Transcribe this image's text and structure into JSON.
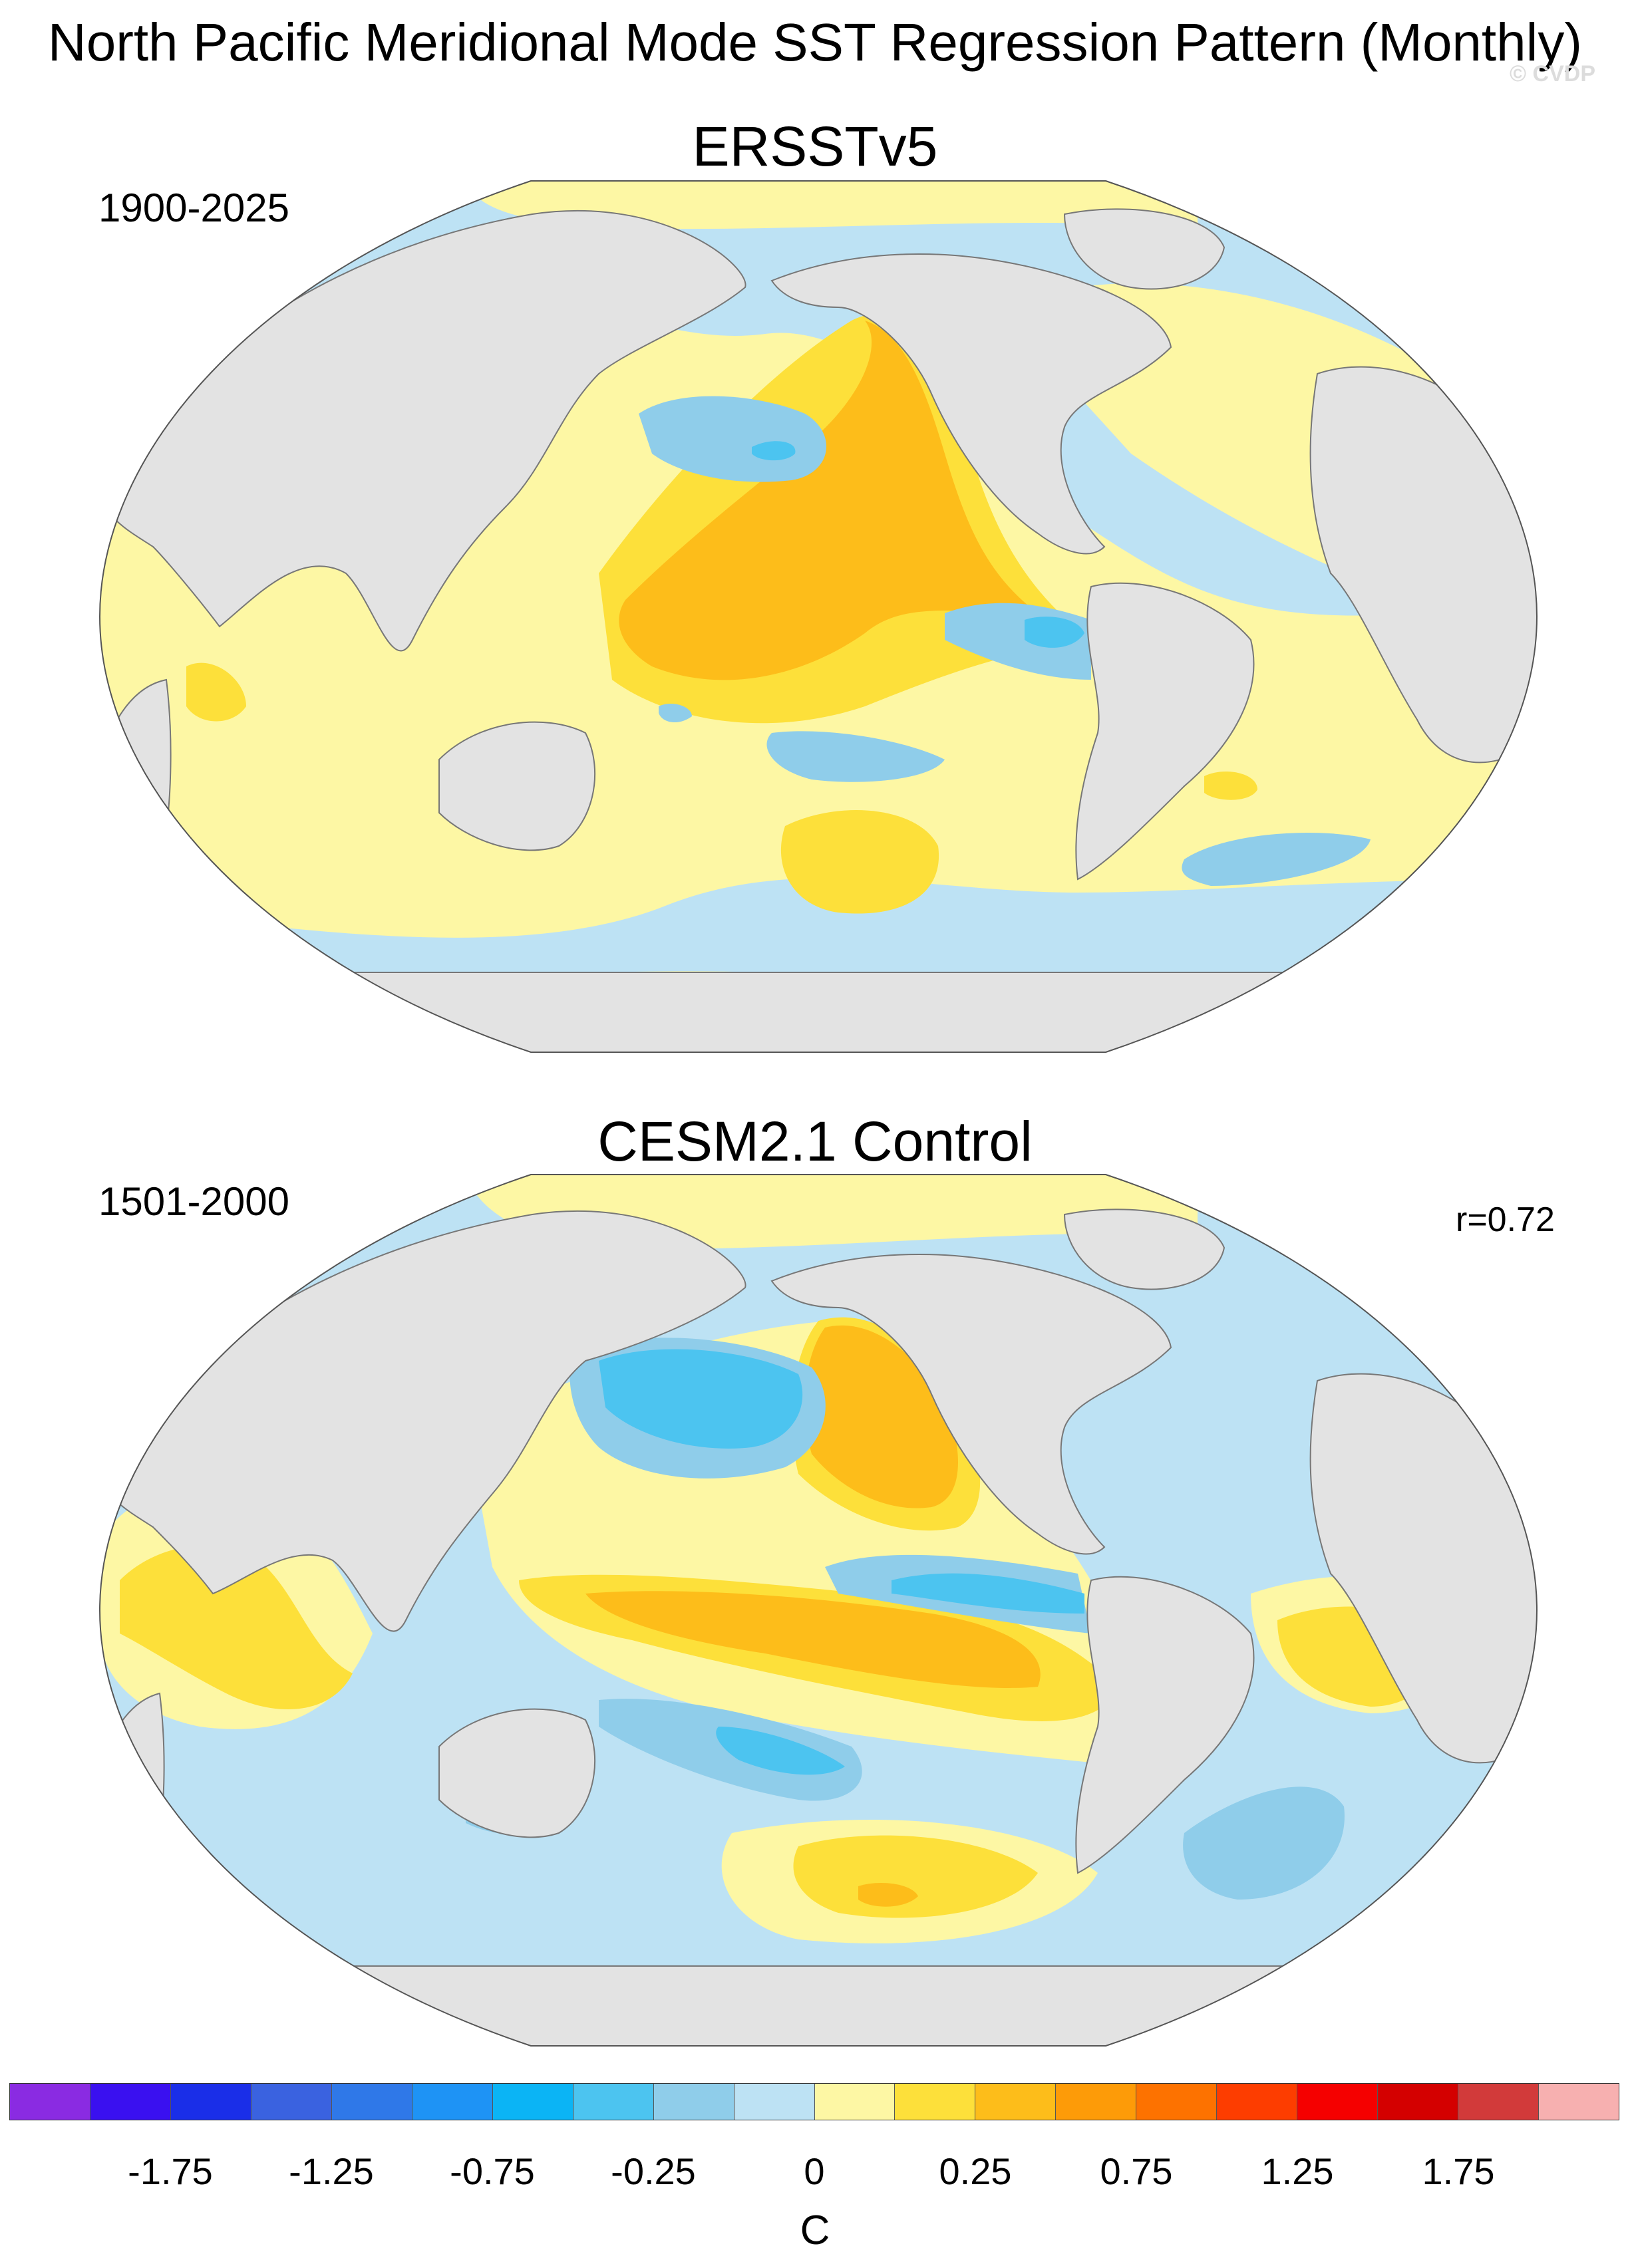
{
  "page": {
    "title": "North Pacific Meridional Mode SST Regression Pattern (Monthly)",
    "watermark": "© CVDP"
  },
  "panels": [
    {
      "title": "ERSSTv5",
      "period": "1900-2025",
      "correlation": null
    },
    {
      "title": "CESM2.1 Control",
      "period": "1501-2000",
      "correlation": "r=0.72"
    }
  ],
  "colorbar": {
    "units": "C",
    "colors": [
      "#8a2be2",
      "#3a10f0",
      "#1a2ee8",
      "#3a62e0",
      "#2f78e8",
      "#1e93f5",
      "#0bb4f5",
      "#4cc4f0",
      "#8fcdea",
      "#bde2f4",
      "#fdf7a4",
      "#fde03a",
      "#fdbd1a",
      "#fd9b08",
      "#fd7200",
      "#fd3d00",
      "#f50000",
      "#d40000",
      "#d23a3a",
      "#f7b0b0"
    ],
    "tick_labels": [
      "-1.75",
      "-1.25",
      "-0.75",
      "-0.25",
      "0",
      "0.25",
      "0.75",
      "1.25",
      "1.75"
    ]
  },
  "legend_colors": {
    "land": "#e3e3e3",
    "coast": "#777777"
  }
}
